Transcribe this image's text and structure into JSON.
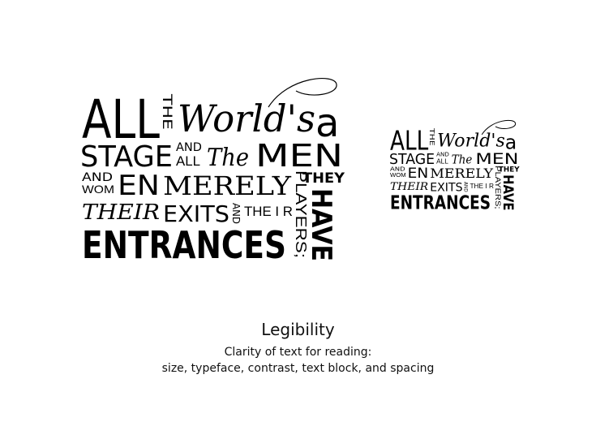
{
  "poster_large": {
    "all": "ALL",
    "the": "THE",
    "worlds": "World's",
    "a": "a",
    "stage": "STAGE",
    "and": "AND",
    "all_small": "ALL",
    "the_script": "The",
    "men": "MEN",
    "and2": "AND",
    "wom": "WOM",
    "en": "EN",
    "merely": "MERELY",
    "they": "THEY",
    "players": "PLAYERS;",
    "have": "HAVE",
    "their": "THEIR",
    "exits": "EXITS",
    "and3": "AND",
    "the_ir": "THE I R",
    "entrances": "ENTRANCES"
  },
  "poster_small": {
    "all": "ALL",
    "the": "THE",
    "worlds": "World's",
    "a": "a",
    "stage": "STAGE",
    "and": "AND",
    "all_small": "ALL",
    "the_script": "The",
    "men": "MEN",
    "and2": "AND",
    "wom": "WOM",
    "en": "EN",
    "merely": "MERELY",
    "they": "THEY",
    "players": "PLAYERS;",
    "have": "HAVE",
    "their": "THEIR",
    "exits": "EXITS",
    "and3": "AND",
    "the_ir": "THE I R",
    "entrances": "ENTRANCES"
  },
  "caption": {
    "title": "Legibility",
    "line1": "Clarity of text for reading:",
    "line2": "size, typeface, contrast, text block, and spacing"
  }
}
